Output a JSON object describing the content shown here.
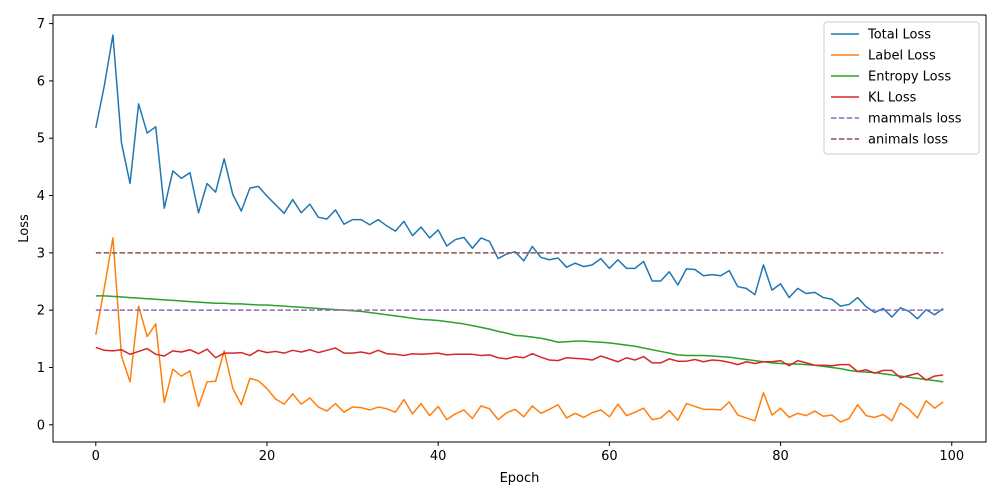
{
  "chart_data": {
    "type": "line",
    "xlabel": "Epoch",
    "ylabel": "Loss",
    "xlim": [
      -5,
      104
    ],
    "ylim": [
      -0.3,
      7.15
    ],
    "xticks": [
      0,
      20,
      40,
      60,
      80,
      100
    ],
    "yticks": [
      0,
      1,
      2,
      3,
      4,
      5,
      6,
      7
    ],
    "grid": false,
    "legend_position": "top-right",
    "x": [
      0,
      1,
      2,
      3,
      4,
      5,
      6,
      7,
      8,
      9,
      10,
      11,
      12,
      13,
      14,
      15,
      16,
      17,
      18,
      19,
      20,
      21,
      22,
      23,
      24,
      25,
      26,
      27,
      28,
      29,
      30,
      31,
      32,
      33,
      34,
      35,
      36,
      37,
      38,
      39,
      40,
      41,
      42,
      43,
      44,
      45,
      46,
      47,
      48,
      49,
      50,
      51,
      52,
      53,
      54,
      55,
      56,
      57,
      58,
      59,
      60,
      61,
      62,
      63,
      64,
      65,
      66,
      67,
      68,
      69,
      70,
      71,
      72,
      73,
      74,
      75,
      76,
      77,
      78,
      79,
      80,
      81,
      82,
      83,
      84,
      85,
      86,
      87,
      88,
      89,
      90,
      91,
      92,
      93,
      94,
      95,
      96,
      97,
      98,
      99
    ],
    "series": [
      {
        "name": "Total Loss",
        "color": "#1f77b4",
        "style": "solid",
        "values": [
          5.18,
          5.92,
          6.8,
          4.92,
          4.21,
          5.6,
          5.09,
          5.2,
          3.78,
          4.43,
          4.3,
          4.4,
          3.7,
          4.21,
          4.06,
          4.64,
          4.02,
          3.73,
          4.13,
          4.16,
          3.99,
          3.84,
          3.69,
          3.93,
          3.7,
          3.85,
          3.62,
          3.59,
          3.75,
          3.5,
          3.58,
          3.58,
          3.49,
          3.58,
          3.47,
          3.38,
          3.55,
          3.3,
          3.45,
          3.26,
          3.4,
          3.12,
          3.23,
          3.27,
          3.08,
          3.26,
          3.2,
          2.9,
          2.98,
          3.02,
          2.86,
          3.11,
          2.92,
          2.88,
          2.91,
          2.75,
          2.82,
          2.76,
          2.79,
          2.9,
          2.73,
          2.88,
          2.73,
          2.73,
          2.85,
          2.51,
          2.51,
          2.67,
          2.44,
          2.72,
          2.71,
          2.6,
          2.62,
          2.6,
          2.69,
          2.41,
          2.38,
          2.27,
          2.79,
          2.35,
          2.46,
          2.22,
          2.38,
          2.29,
          2.31,
          2.22,
          2.19,
          2.07,
          2.1,
          2.22,
          2.06,
          1.96,
          2.03,
          1.88,
          2.04,
          1.98,
          1.85,
          2.01,
          1.92,
          2.03
        ]
      },
      {
        "name": "Label Loss",
        "color": "#ff7f0e",
        "style": "solid",
        "values": [
          1.57,
          2.39,
          3.26,
          1.2,
          0.75,
          2.07,
          1.54,
          1.76,
          0.39,
          0.97,
          0.85,
          0.94,
          0.32,
          0.75,
          0.76,
          1.29,
          0.64,
          0.35,
          0.81,
          0.77,
          0.63,
          0.45,
          0.36,
          0.54,
          0.36,
          0.47,
          0.31,
          0.24,
          0.37,
          0.22,
          0.31,
          0.3,
          0.26,
          0.31,
          0.28,
          0.22,
          0.44,
          0.19,
          0.37,
          0.16,
          0.32,
          0.09,
          0.19,
          0.26,
          0.11,
          0.33,
          0.28,
          0.09,
          0.21,
          0.27,
          0.14,
          0.33,
          0.2,
          0.27,
          0.35,
          0.12,
          0.2,
          0.13,
          0.21,
          0.26,
          0.14,
          0.36,
          0.16,
          0.22,
          0.29,
          0.09,
          0.12,
          0.25,
          0.08,
          0.37,
          0.32,
          0.27,
          0.27,
          0.26,
          0.4,
          0.17,
          0.12,
          0.07,
          0.56,
          0.17,
          0.29,
          0.13,
          0.2,
          0.16,
          0.24,
          0.15,
          0.17,
          0.05,
          0.11,
          0.35,
          0.16,
          0.13,
          0.18,
          0.07,
          0.38,
          0.27,
          0.12,
          0.42,
          0.29,
          0.4
        ]
      },
      {
        "name": "Entropy Loss",
        "color": "#2ca02c",
        "style": "solid",
        "values": [
          2.25,
          2.25,
          2.24,
          2.23,
          2.22,
          2.21,
          2.2,
          2.19,
          2.18,
          2.17,
          2.16,
          2.15,
          2.14,
          2.13,
          2.12,
          2.12,
          2.11,
          2.11,
          2.1,
          2.09,
          2.09,
          2.08,
          2.07,
          2.06,
          2.05,
          2.04,
          2.03,
          2.02,
          2.01,
          2.0,
          1.99,
          1.98,
          1.96,
          1.94,
          1.92,
          1.9,
          1.88,
          1.86,
          1.84,
          1.83,
          1.82,
          1.8,
          1.78,
          1.76,
          1.73,
          1.7,
          1.67,
          1.63,
          1.6,
          1.56,
          1.55,
          1.53,
          1.51,
          1.48,
          1.44,
          1.45,
          1.46,
          1.46,
          1.45,
          1.44,
          1.43,
          1.41,
          1.39,
          1.37,
          1.34,
          1.31,
          1.28,
          1.25,
          1.22,
          1.21,
          1.21,
          1.21,
          1.2,
          1.19,
          1.18,
          1.16,
          1.14,
          1.12,
          1.1,
          1.08,
          1.07,
          1.06,
          1.06,
          1.05,
          1.04,
          1.02,
          1.0,
          0.98,
          0.95,
          0.93,
          0.92,
          0.91,
          0.89,
          0.87,
          0.85,
          0.83,
          0.81,
          0.79,
          0.77,
          0.75
        ]
      },
      {
        "name": "KL Loss",
        "color": "#d62728",
        "style": "solid",
        "values": [
          1.35,
          1.3,
          1.29,
          1.31,
          1.23,
          1.28,
          1.33,
          1.23,
          1.2,
          1.29,
          1.27,
          1.31,
          1.24,
          1.32,
          1.17,
          1.25,
          1.25,
          1.26,
          1.21,
          1.3,
          1.26,
          1.28,
          1.25,
          1.3,
          1.27,
          1.31,
          1.26,
          1.3,
          1.34,
          1.25,
          1.25,
          1.27,
          1.24,
          1.3,
          1.24,
          1.23,
          1.21,
          1.24,
          1.23,
          1.24,
          1.25,
          1.22,
          1.23,
          1.23,
          1.23,
          1.21,
          1.22,
          1.17,
          1.15,
          1.19,
          1.17,
          1.24,
          1.18,
          1.13,
          1.12,
          1.17,
          1.16,
          1.15,
          1.13,
          1.2,
          1.15,
          1.1,
          1.17,
          1.13,
          1.19,
          1.08,
          1.08,
          1.15,
          1.11,
          1.11,
          1.14,
          1.1,
          1.13,
          1.12,
          1.09,
          1.05,
          1.1,
          1.07,
          1.1,
          1.1,
          1.12,
          1.03,
          1.12,
          1.08,
          1.04,
          1.04,
          1.03,
          1.05,
          1.05,
          0.93,
          0.96,
          0.9,
          0.95,
          0.95,
          0.82,
          0.86,
          0.9,
          0.78,
          0.85,
          0.87
        ]
      },
      {
        "name": " mammals loss",
        "color": "#9467bd",
        "style": "dashed",
        "constant": 2.0
      },
      {
        "name": " animals loss",
        "color": "#8c564b",
        "style": "dashed",
        "constant": 3.0
      }
    ]
  }
}
